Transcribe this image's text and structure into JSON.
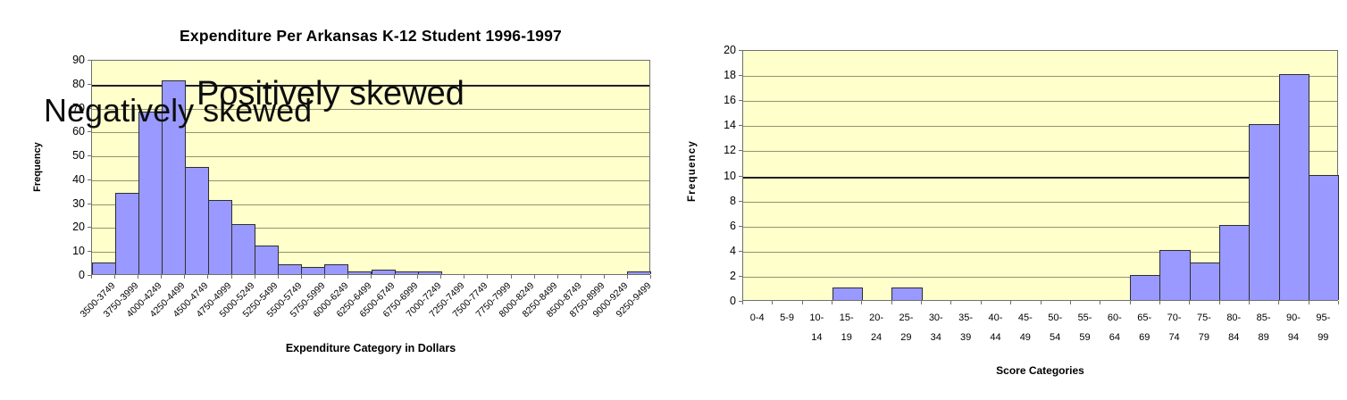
{
  "page": {
    "background": "#ffffff"
  },
  "chart_data": [
    {
      "type": "bar",
      "title": "Expenditure Per Arkansas K-12 Student 1996-1997",
      "annotation": "Positively skewed",
      "xlabel": "Expenditure Category in Dollars",
      "ylabel": "Frequency",
      "ylim": [
        0,
        90
      ],
      "ytick_step": 10,
      "grid": "on",
      "dark_gridline_at": 80,
      "categories": [
        "3500-3749",
        "3750-3999",
        "4000-4249",
        "4250-4499",
        "4500-4749",
        "4750-4999",
        "5000-5249",
        "5250-5499",
        "5500-5749",
        "5750-5999",
        "6000-6249",
        "6250-6499",
        "6500-6749",
        "6750-6999",
        "7000-7249",
        "7250-7499",
        "7500-7749",
        "7750-7999",
        "8000-8249",
        "8250-8499",
        "8500-8749",
        "8750-8999",
        "9000-9249",
        "9250-9499"
      ],
      "values": [
        5,
        34,
        68,
        81,
        45,
        31,
        21,
        12,
        4,
        3,
        4,
        1,
        2,
        1,
        1,
        0,
        0,
        0,
        0,
        0,
        0,
        0,
        0,
        1
      ],
      "colors": {
        "bar_fill": "#9999ff",
        "bar_border": "#2e2e2e",
        "plot_bg": "#ffffcc",
        "gridline": "#93936e",
        "dark_gridline": "#1f1f1f",
        "axis": "#6f6f6f"
      }
    },
    {
      "type": "bar",
      "title": "",
      "annotation": "Negatively skewed",
      "xlabel": "Score Categories",
      "ylabel": "Frequency",
      "ylim": [
        0,
        20
      ],
      "ytick_step": 2,
      "grid": "on",
      "dark_gridline_at": 10,
      "categories": [
        "0-4",
        "5-9",
        "10-\n14",
        "15-\n19",
        "20-\n24",
        "25-\n29",
        "30-\n34",
        "35-\n39",
        "40-\n44",
        "45-\n49",
        "50-\n54",
        "55-\n59",
        "60-\n64",
        "65-\n69",
        "70-\n74",
        "75-\n79",
        "80-\n84",
        "85-\n89",
        "90-\n94",
        "95-\n99"
      ],
      "values": [
        0,
        0,
        0,
        1,
        0,
        1,
        0,
        0,
        0,
        0,
        0,
        0,
        0,
        2,
        4,
        3,
        6,
        14,
        18,
        10
      ],
      "colors": {
        "bar_fill": "#9999ff",
        "bar_border": "#2e2e2e",
        "plot_bg": "#ffffcc",
        "gridline": "#93936e",
        "dark_gridline": "#1f1f1f",
        "axis": "#6f6f6f"
      }
    }
  ]
}
